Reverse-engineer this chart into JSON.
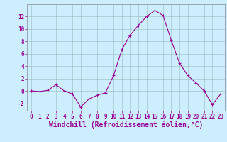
{
  "x": [
    0,
    1,
    2,
    3,
    4,
    5,
    6,
    7,
    8,
    9,
    10,
    11,
    12,
    13,
    14,
    15,
    16,
    17,
    18,
    19,
    20,
    21,
    22,
    23
  ],
  "y": [
    0.0,
    -0.1,
    0.1,
    1.0,
    0.0,
    -0.5,
    -2.6,
    -1.3,
    -0.7,
    -0.3,
    2.5,
    6.7,
    9.0,
    10.6,
    12.0,
    13.0,
    12.2,
    8.2,
    4.5,
    2.5,
    1.3,
    0.0,
    -2.2,
    -0.5
  ],
  "line_color": "#990099",
  "marker_color": "#990099",
  "bg_color": "#cceeff",
  "grid_color": "#99bbbb",
  "xlabel": "Windchill (Refroidissement éolien,°C)",
  "xlim": [
    -0.5,
    23.5
  ],
  "ylim": [
    -3.2,
    14.0
  ],
  "yticks": [
    0,
    2,
    4,
    6,
    8,
    10,
    12
  ],
  "ytick_labels": [
    "0",
    "2",
    "4",
    "6",
    "8",
    "10",
    "12"
  ],
  "xtick_labels": [
    "0",
    "1",
    "2",
    "3",
    "4",
    "5",
    "6",
    "7",
    "8",
    "9",
    "10",
    "11",
    "12",
    "13",
    "14",
    "15",
    "16",
    "17",
    "18",
    "19",
    "20",
    "21",
    "22",
    "23"
  ],
  "tick_color": "#990099",
  "tick_fontsize": 5.5,
  "xlabel_fontsize": 7.0,
  "ylabel_extra": "-2"
}
